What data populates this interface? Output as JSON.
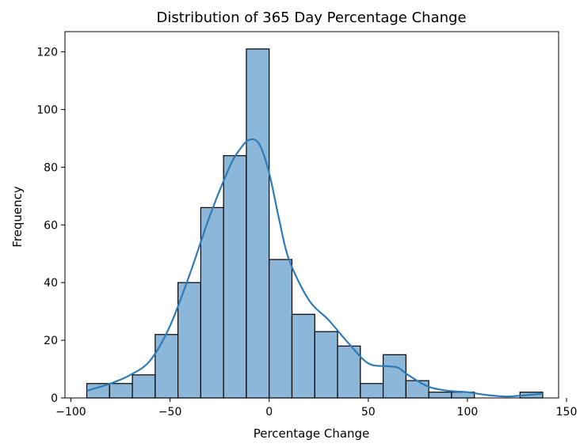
{
  "chart_data": {
    "type": "bar",
    "title": "Distribution of 365 Day Percentage Change",
    "xlabel": "Percentage Change",
    "ylabel": "Frequency",
    "xlim": [
      -103,
      146
    ],
    "ylim": [
      0,
      127
    ],
    "xticks": [
      -100,
      -50,
      0,
      50,
      100,
      150
    ],
    "xtick_labels": [
      "−100",
      "−50",
      "0",
      "50",
      "100",
      "150"
    ],
    "yticks": [
      0,
      20,
      40,
      60,
      80,
      100,
      120
    ],
    "ytick_labels": [
      "0",
      "20",
      "40",
      "60",
      "80",
      "100",
      "120"
    ],
    "grid": false,
    "bin_edges": [
      -92,
      -80.5,
      -69,
      -57.5,
      -46,
      -34.5,
      -23,
      -11.5,
      0,
      11.5,
      23,
      34.5,
      46,
      57.5,
      69,
      80.5,
      92,
      103.5,
      115,
      126.5,
      138
    ],
    "values": [
      5,
      5,
      8,
      22,
      40,
      66,
      84,
      121,
      48,
      29,
      23,
      18,
      5,
      15,
      6,
      2,
      2,
      0,
      0,
      2
    ],
    "kde": {
      "x": [
        -92,
        -80,
        -70,
        -60,
        -50,
        -40,
        -30,
        -20,
        -15,
        -10,
        -5,
        0,
        5,
        10,
        20,
        30,
        40,
        50,
        60,
        65,
        70,
        80,
        90,
        100,
        110,
        120,
        130,
        138
      ],
      "y": [
        2.5,
        5,
        8,
        13,
        25,
        43,
        63,
        80,
        86,
        89.5,
        88,
        78,
        62,
        48,
        34,
        27,
        19,
        12,
        11,
        10.5,
        8,
        4,
        2.5,
        2,
        1,
        0.5,
        1,
        1.5
      ]
    },
    "colors": {
      "bar_fill": "#8db7d9",
      "bar_edge": "#000000",
      "kde_line": "#2f7bb7"
    }
  }
}
